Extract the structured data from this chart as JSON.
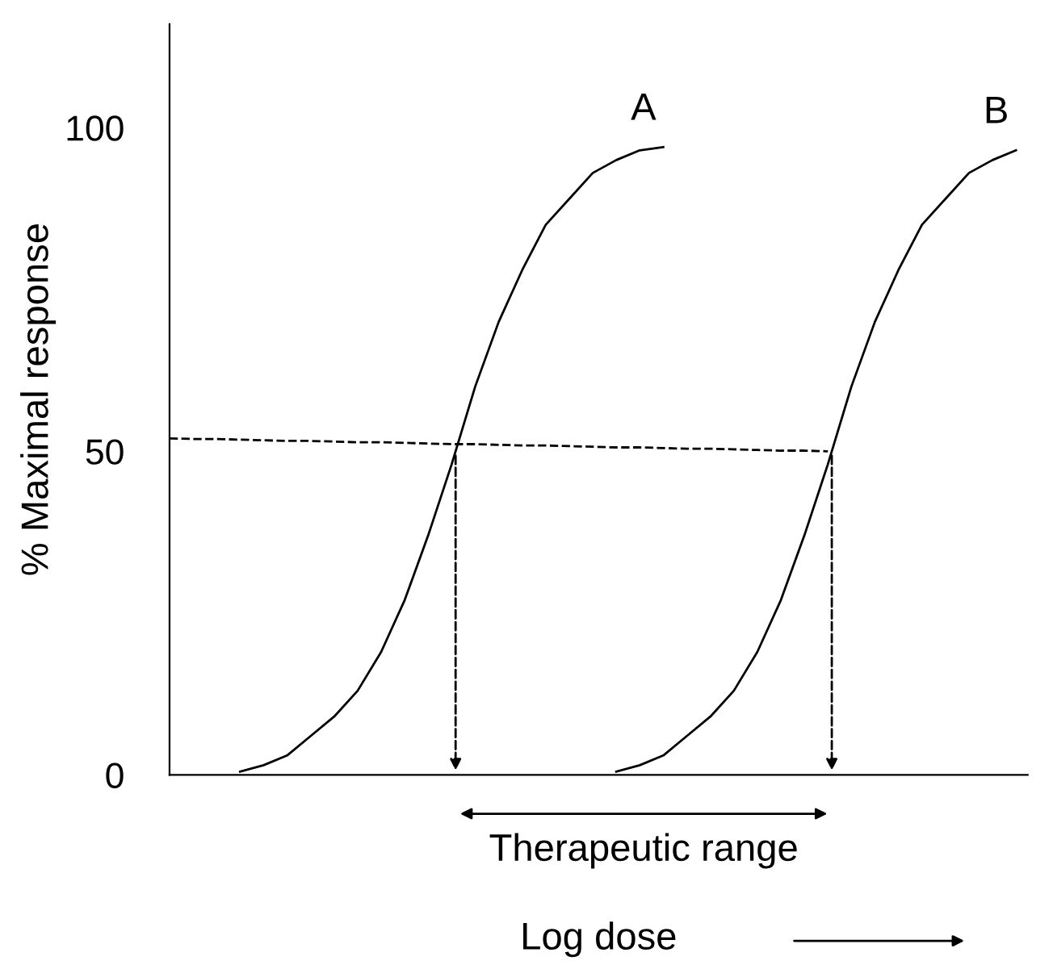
{
  "chart_data": {
    "type": "line",
    "ylabel": "% Maximal response",
    "xlabel": "Log dose",
    "categories": [
      null,
      null,
      null,
      null,
      null,
      null,
      null,
      null,
      null,
      null,
      null,
      null,
      null,
      null,
      null,
      null,
      null,
      null,
      null,
      null,
      null,
      null,
      null,
      null,
      null,
      null,
      null,
      null,
      null,
      null,
      null,
      null,
      null,
      null,
      null,
      null,
      null
    ],
    "series": [
      {
        "name": "A",
        "color": "#000000",
        "values": [
          null,
          null,
          null,
          0.5,
          1.5,
          3,
          6,
          9,
          13,
          19,
          27,
          37,
          48,
          60,
          70,
          78,
          85,
          89,
          93,
          95,
          96.5,
          97,
          null,
          null,
          null,
          null,
          null,
          null,
          null,
          null,
          null,
          null,
          null,
          null,
          null,
          null,
          null
        ]
      },
      {
        "name": "B",
        "color": "#000000",
        "values": [
          null,
          null,
          null,
          null,
          null,
          null,
          null,
          null,
          null,
          null,
          null,
          null,
          null,
          null,
          null,
          null,
          null,
          null,
          null,
          0.5,
          1.5,
          3,
          6,
          9,
          13,
          19,
          27,
          37,
          48,
          60,
          70,
          78,
          85,
          89,
          93,
          95,
          96.5
        ]
      },
      {
        "color": "#000000",
        "line_style": "dashed",
        "values": [
          52,
          51.9,
          51.9,
          51.8,
          51.7,
          51.6,
          51.6,
          51.5,
          51.4,
          51.4,
          51.3,
          51.2,
          51.1,
          51.1,
          51,
          50.9,
          50.9,
          50.8,
          50.7,
          50.6,
          50.6,
          50.5,
          50.4,
          50.4,
          50.3,
          50.2,
          50.1,
          50.1,
          50,
          null,
          null,
          null,
          null,
          null,
          null,
          null,
          null
        ]
      }
    ],
    "ylim": [
      0,
      116
    ],
    "yticks": [
      0,
      50,
      100
    ],
    "grid": false,
    "legend": false,
    "annotations": [
      "Therapeutic range"
    ]
  }
}
